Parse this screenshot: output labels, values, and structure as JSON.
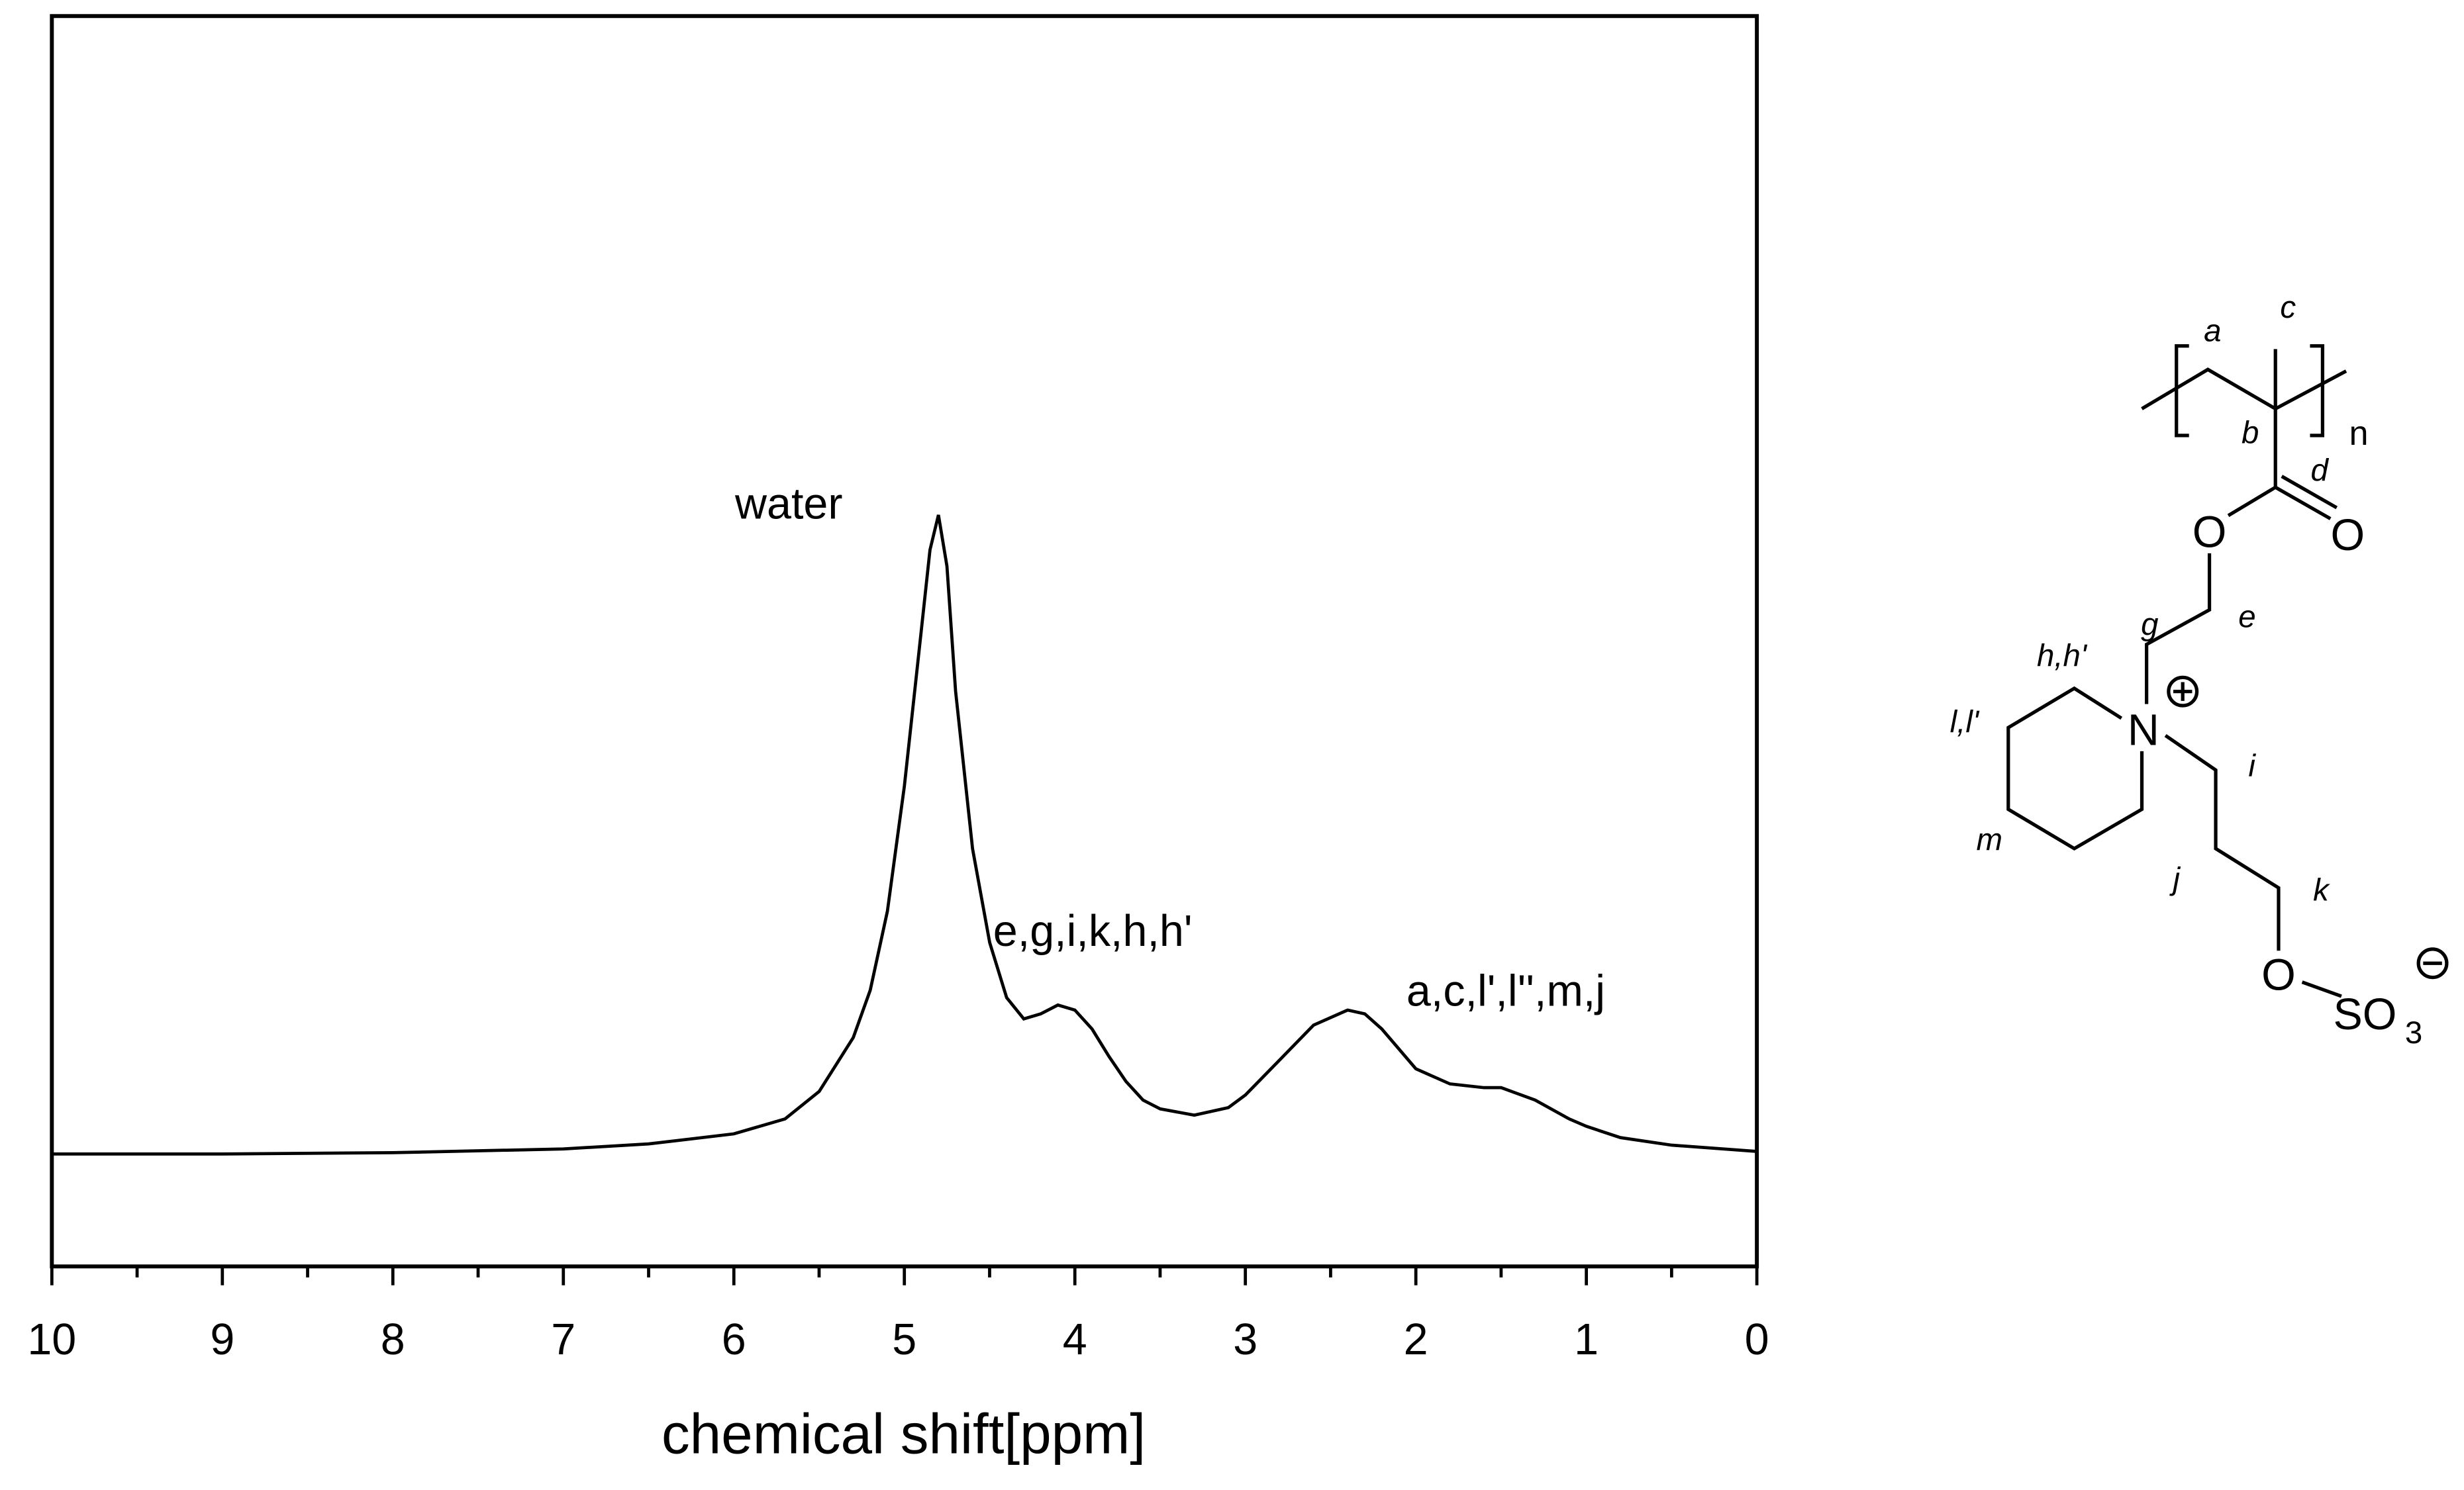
{
  "chart_data": {
    "type": "line",
    "color": "#000000",
    "x_label": "chemical shift[ppm]",
    "x": [
      10,
      9,
      8,
      7,
      6.5,
      6,
      5.7,
      5.5,
      5.3,
      5.2,
      5.1,
      5.0,
      4.9,
      4.85,
      4.8,
      4.75,
      4.7,
      4.6,
      4.5,
      4.4,
      4.3,
      4.2,
      4.1,
      4.0,
      3.9,
      3.8,
      3.7,
      3.6,
      3.5,
      3.3,
      3.1,
      3.0,
      2.8,
      2.6,
      2.4,
      2.3,
      2.2,
      2.0,
      1.8,
      1.6,
      1.5,
      1.3,
      1.1,
      1.0,
      0.8,
      0.5,
      0
    ],
    "values": [
      9.0,
      9.0,
      9.1,
      9.4,
      9.8,
      10.6,
      11.8,
      14.0,
      18.3,
      22.1,
      28.4,
      38.4,
      51,
      57.3,
      60.1,
      56,
      46,
      33.4,
      25.9,
      21.5,
      19.8,
      20.2,
      20.9,
      20.5,
      19,
      16.8,
      14.8,
      13.3,
      12.6,
      12.1,
      12.7,
      13.7,
      16.5,
      19.3,
      20.5,
      20.2,
      19,
      15.8,
      14.6,
      14.3,
      14.3,
      13.3,
      11.8,
      11.2,
      10.3,
      9.7,
      9.2
    ],
    "xlim": [
      10,
      0
    ],
    "ylim": [
      0,
      100
    ],
    "xticks": [
      10,
      9,
      8,
      7,
      6,
      5,
      4,
      3,
      2,
      1,
      0
    ],
    "xminorticks": [
      9.5,
      8.5,
      7.5,
      6.5,
      5.5,
      4.5,
      3.5,
      2.5,
      1.5,
      0.5
    ],
    "annotations": [
      "water",
      "e,g,i,k,h,h'",
      "a,c,l',l'',m,j"
    ]
  },
  "structure": {
    "labels": [
      "a",
      "b",
      "c",
      "d",
      "e",
      "g",
      "h,h'",
      "i",
      "j",
      "k",
      "l,l'",
      "m"
    ],
    "atoms": [
      "n",
      "O",
      "O",
      "O",
      "N",
      "SO",
      "3"
    ]
  }
}
